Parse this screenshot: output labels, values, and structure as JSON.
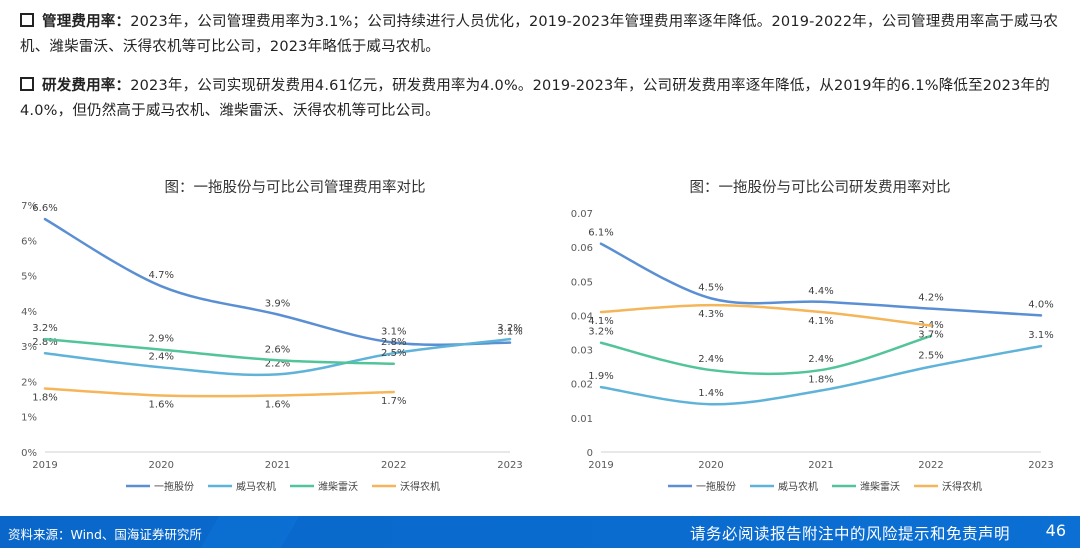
{
  "paragraphs": [
    {
      "lead": "管理费用率：",
      "text": "2023年，公司管理费用率为3.1%；公司持续进行人员优化，2019-2023年管理费用率逐年降低。2019-2022年，公司管理费用率高于威马农机、潍柴雷沃、沃得农机等可比公司，2023年略低于威马农机。"
    },
    {
      "lead": "研发费用率：",
      "text": "2023年，公司实现研发费用4.61亿元，研发费用率为4.0%。2019-2023年，公司研发费用率逐年降低，从2019年的6.1%降低至2023年的4.0%，但仍然高于威马农机、潍柴雷沃、沃得农机等可比公司。"
    }
  ],
  "footer": {
    "source": "资料来源：Wind、国海证券研究所",
    "disclaimer": "请务必阅读报告附注中的风险提示和免责声明",
    "page": "46"
  },
  "colors": {
    "yituo": "#5b8fd3",
    "weima": "#5fb3d9",
    "weichai": "#52c49a",
    "wode": "#f5b559",
    "footer": "#0a67c9"
  },
  "chart_data": [
    {
      "type": "line",
      "title": "图：一拖股份与可比公司管理费用率对比",
      "categories": [
        "2019",
        "2020",
        "2021",
        "2022",
        "2023"
      ],
      "yticks": [
        "0%",
        "1%",
        "2%",
        "3%",
        "4%",
        "5%",
        "6%",
        "7%"
      ],
      "ylim": [
        0,
        0.07
      ],
      "legend_position": "bottom",
      "series": [
        {
          "name": "一拖股份",
          "values": [
            0.066,
            0.047,
            0.039,
            0.031,
            0.031
          ],
          "labels": [
            "6.6%",
            "4.7%",
            "3.9%",
            "3.1%",
            "3.1%"
          ]
        },
        {
          "name": "威马农机",
          "values": [
            0.028,
            0.024,
            0.022,
            0.028,
            0.032
          ],
          "labels": [
            "2.8%",
            "2.4%",
            "2.2%",
            "2.8%",
            "3.2%"
          ]
        },
        {
          "name": "潍柴雷沃",
          "values": [
            0.032,
            0.029,
            0.026,
            0.025,
            null
          ],
          "labels": [
            "3.2%",
            "2.9%",
            "2.6%",
            "2.5%",
            ""
          ]
        },
        {
          "name": "沃得农机",
          "values": [
            0.018,
            0.016,
            0.016,
            0.017,
            null
          ],
          "labels": [
            "1.8%",
            "1.6%",
            "1.6%",
            "1.7%",
            ""
          ]
        }
      ]
    },
    {
      "type": "line",
      "title": "图：一拖股份与可比公司研发费用率对比",
      "categories": [
        "2019",
        "2020",
        "2021",
        "2022",
        "2023"
      ],
      "yticks": [
        "0",
        "0.01",
        "0.02",
        "0.03",
        "0.04",
        "0.05",
        "0.06",
        "0.07"
      ],
      "ylim": [
        0,
        0.07
      ],
      "legend_position": "bottom",
      "series": [
        {
          "name": "一拖股份",
          "values": [
            0.061,
            0.045,
            0.044,
            0.042,
            0.04
          ],
          "labels": [
            "6.1%",
            "4.5%",
            "4.4%",
            "4.2%",
            "4.0%"
          ]
        },
        {
          "name": "威马农机",
          "values": [
            0.019,
            0.014,
            0.018,
            0.025,
            0.031
          ],
          "labels": [
            "1.9%",
            "1.4%",
            "1.8%",
            "2.5%",
            "3.1%"
          ]
        },
        {
          "name": "潍柴雷沃",
          "values": [
            0.032,
            0.024,
            0.024,
            0.034,
            null
          ],
          "labels": [
            "3.2%",
            "2.4%",
            "2.4%",
            "3.4%",
            ""
          ]
        },
        {
          "name": "沃得农机",
          "values": [
            0.041,
            0.043,
            0.041,
            0.037,
            null
          ],
          "labels": [
            "4.1%",
            "4.3%",
            "4.1%",
            "3.7%",
            ""
          ]
        }
      ]
    }
  ]
}
